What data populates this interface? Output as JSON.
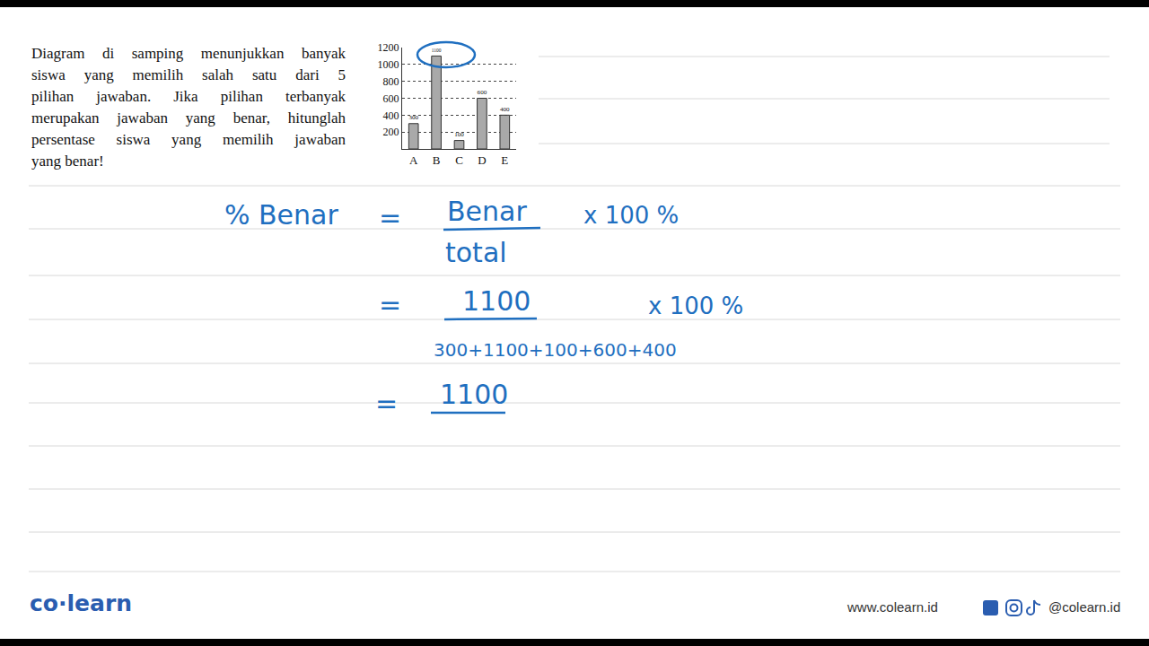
{
  "problem": {
    "lines": [
      "Diagram di samping menunjukkan banyak",
      "siswa yang memilih salah satu dari 5",
      "pilihan jawaban. Jika pilihan terbanyak",
      "merupakan jawaban yang benar, hitunglah",
      "persentase siswa yang memilih jawaban",
      "yang benar!"
    ]
  },
  "chart_data": {
    "type": "bar",
    "categories": [
      "A",
      "B",
      "C",
      "D",
      "E"
    ],
    "values": [
      300,
      1100,
      100,
      600,
      400
    ],
    "color": "#a9a9a9",
    "ylim": [
      0,
      1200
    ],
    "yticks": [
      200,
      400,
      600,
      800,
      1000,
      1200
    ],
    "grid": true,
    "data_labels": true
  },
  "solution": {
    "lhs": "% Benar",
    "equals": "=",
    "step1": {
      "numerator": "Benar",
      "denominator": "total",
      "factor": "x 100 %"
    },
    "step2": {
      "numerator": "1100",
      "denominator": "300+1100+100+600+400",
      "factor": "x 100 %"
    },
    "step3": {
      "numerator": "1100"
    }
  },
  "footer": {
    "logo": "co·learn",
    "website": "www.colearn.id",
    "social": "@colearn.id"
  }
}
